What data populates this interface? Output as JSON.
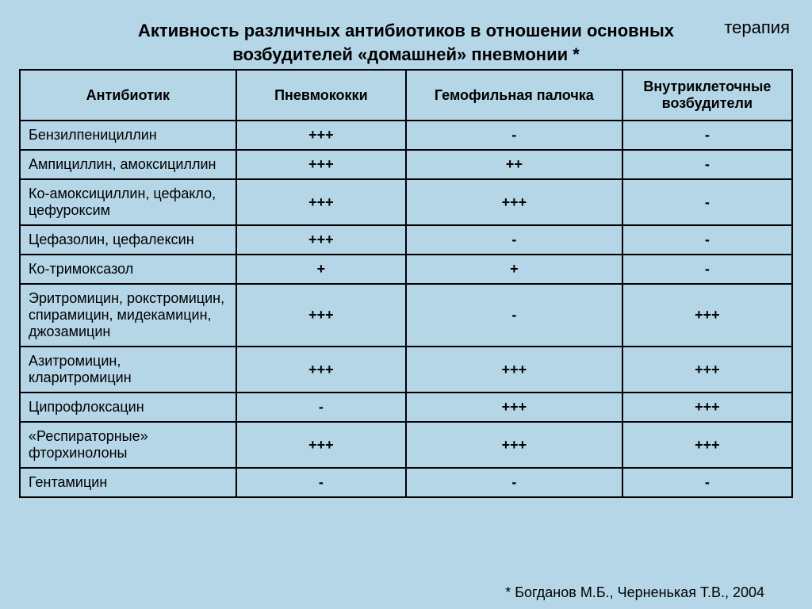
{
  "corner_label": "терапия",
  "title_line1": "Активность различных антибиотиков в отношении основных",
  "title_line2": "возбудителей «домашней» пневмонии *",
  "footnote": "* Богданов М.Б., Черненькая Т.В., 2004",
  "table": {
    "type": "table",
    "background_color": "#b4d6e6",
    "border_color": "#000000",
    "header_fontsize": 18,
    "cell_fontsize": 18,
    "columns": [
      {
        "label": "Антибиотик",
        "width_pct": 28,
        "align": "center"
      },
      {
        "label": "Пневмококки",
        "width_pct": 22,
        "align": "center"
      },
      {
        "label": "Гемофильная палочка",
        "width_pct": 28,
        "align": "center"
      },
      {
        "label": "Внутриклеточные возбудители",
        "width_pct": 22,
        "align": "center"
      }
    ],
    "rows": [
      {
        "name": "Бензилпенициллин",
        "v": [
          "+++",
          "-",
          "-"
        ]
      },
      {
        "name": "Ампициллин, амоксициллин",
        "v": [
          "+++",
          "++",
          "-"
        ]
      },
      {
        "name": "Ко-амоксициллин, цефакло, цефуроксим",
        "v": [
          "+++",
          "+++",
          "-"
        ]
      },
      {
        "name": "Цефазолин, цефалексин",
        "v": [
          "+++",
          "-",
          "-"
        ]
      },
      {
        "name": "Ко-тримоксазол",
        "v": [
          "+",
          "+",
          "-"
        ]
      },
      {
        "name": "Эритромицин, рокстромицин, спирамицин, мидекамицин, джозамицин",
        "v": [
          "+++",
          "-",
          "+++"
        ]
      },
      {
        "name": "Азитромицин, кларитромицин",
        "v": [
          "+++",
          "+++",
          "+++"
        ]
      },
      {
        "name": "Ципрофлоксацин",
        "v": [
          "-",
          "+++",
          "+++"
        ]
      },
      {
        "name": "«Респираторные» фторхинолоны",
        "v": [
          "+++",
          "+++",
          "+++"
        ]
      },
      {
        "name": "Гентамицин",
        "v": [
          "-",
          "-",
          "-"
        ]
      }
    ]
  }
}
